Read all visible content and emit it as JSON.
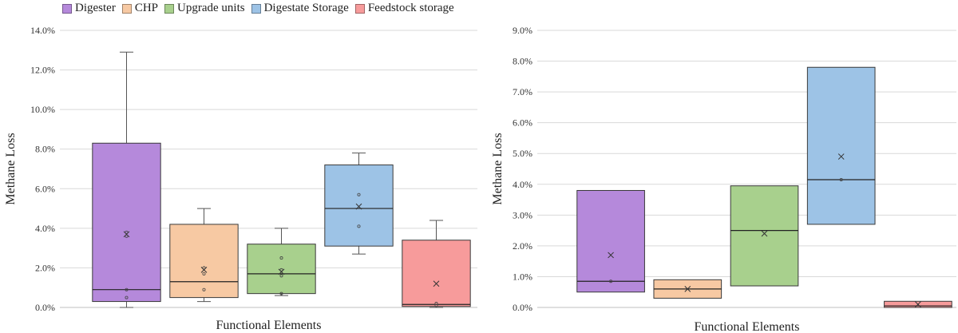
{
  "legend": {
    "items": [
      {
        "label": "Digester",
        "color": "#b589db"
      },
      {
        "label": "CHP",
        "color": "#f7c9a3"
      },
      {
        "label": "Upgrade units",
        "color": "#a8d08d"
      },
      {
        "label": "Digestate Storage",
        "color": "#9dc3e6"
      },
      {
        "label": "Feedstock storage",
        "color": "#f79b9b"
      }
    ]
  },
  "chart_data": [
    {
      "type": "box",
      "xlabel": "Functional Elements",
      "ylabel": "Methane Loss",
      "ylim": [
        0,
        0.14
      ],
      "yticks": [
        "0.0%",
        "2.0%",
        "4.0%",
        "6.0%",
        "8.0%",
        "10.0%",
        "12.0%",
        "14.0%"
      ],
      "grid": true,
      "series": [
        {
          "name": "Digester",
          "color": "#b589db",
          "min": 0.0,
          "q1": 0.003,
          "median": 0.009,
          "q3": 0.083,
          "max": 0.129,
          "mean": 0.037,
          "points": [
            0.005,
            0.009,
            0.036,
            0.038
          ]
        },
        {
          "name": "CHP",
          "color": "#f7c9a3",
          "min": 0.003,
          "q1": 0.005,
          "median": 0.013,
          "q3": 0.042,
          "max": 0.05,
          "mean": 0.019,
          "points": [
            0.009,
            0.017,
            0.02
          ]
        },
        {
          "name": "Upgrade units",
          "color": "#a8d08d",
          "min": 0.006,
          "q1": 0.007,
          "median": 0.017,
          "q3": 0.032,
          "max": 0.04,
          "mean": 0.018,
          "points": [
            0.007,
            0.016,
            0.019,
            0.025
          ]
        },
        {
          "name": "Digestate Storage",
          "color": "#9dc3e6",
          "min": 0.027,
          "q1": 0.031,
          "median": 0.05,
          "q3": 0.072,
          "max": 0.078,
          "mean": 0.051,
          "points": [
            0.041,
            0.057
          ]
        },
        {
          "name": "Feedstock storage",
          "color": "#f79b9b",
          "min": 0.0,
          "q1": 0.0005,
          "median": 0.0015,
          "q3": 0.034,
          "max": 0.044,
          "mean": 0.012,
          "points": [
            0.001,
            0.002
          ]
        }
      ]
    },
    {
      "type": "box",
      "xlabel": "Functional Elements",
      "ylabel": "Methane Loss",
      "ylim": [
        0,
        0.09
      ],
      "yticks": [
        "0.0%",
        "1.0%",
        "2.0%",
        "3.0%",
        "4.0%",
        "5.0%",
        "6.0%",
        "7.0%",
        "8.0%",
        "9.0%"
      ],
      "grid": true,
      "series": [
        {
          "name": "Digester",
          "color": "#b589db",
          "min": 0.005,
          "q1": 0.005,
          "median": 0.0085,
          "q3": 0.038,
          "max": 0.038,
          "mean": 0.017,
          "points": [
            0.0085
          ]
        },
        {
          "name": "CHP",
          "color": "#f7c9a3",
          "min": 0.003,
          "q1": 0.003,
          "median": 0.006,
          "q3": 0.009,
          "max": 0.009,
          "mean": 0.006,
          "points": []
        },
        {
          "name": "Upgrade units",
          "color": "#a8d08d",
          "min": 0.007,
          "q1": 0.007,
          "median": 0.025,
          "q3": 0.0395,
          "max": 0.0395,
          "mean": 0.024,
          "points": []
        },
        {
          "name": "Digestate Storage",
          "color": "#9dc3e6",
          "min": 0.027,
          "q1": 0.027,
          "median": 0.0415,
          "q3": 0.078,
          "max": 0.078,
          "mean": 0.049,
          "points": [
            0.0415
          ]
        },
        {
          "name": "Feedstock storage",
          "color": "#f79b9b",
          "min": 0.0,
          "q1": 0.0,
          "median": 0.0005,
          "q3": 0.002,
          "max": 0.002,
          "mean": 0.001,
          "points": []
        }
      ]
    }
  ]
}
